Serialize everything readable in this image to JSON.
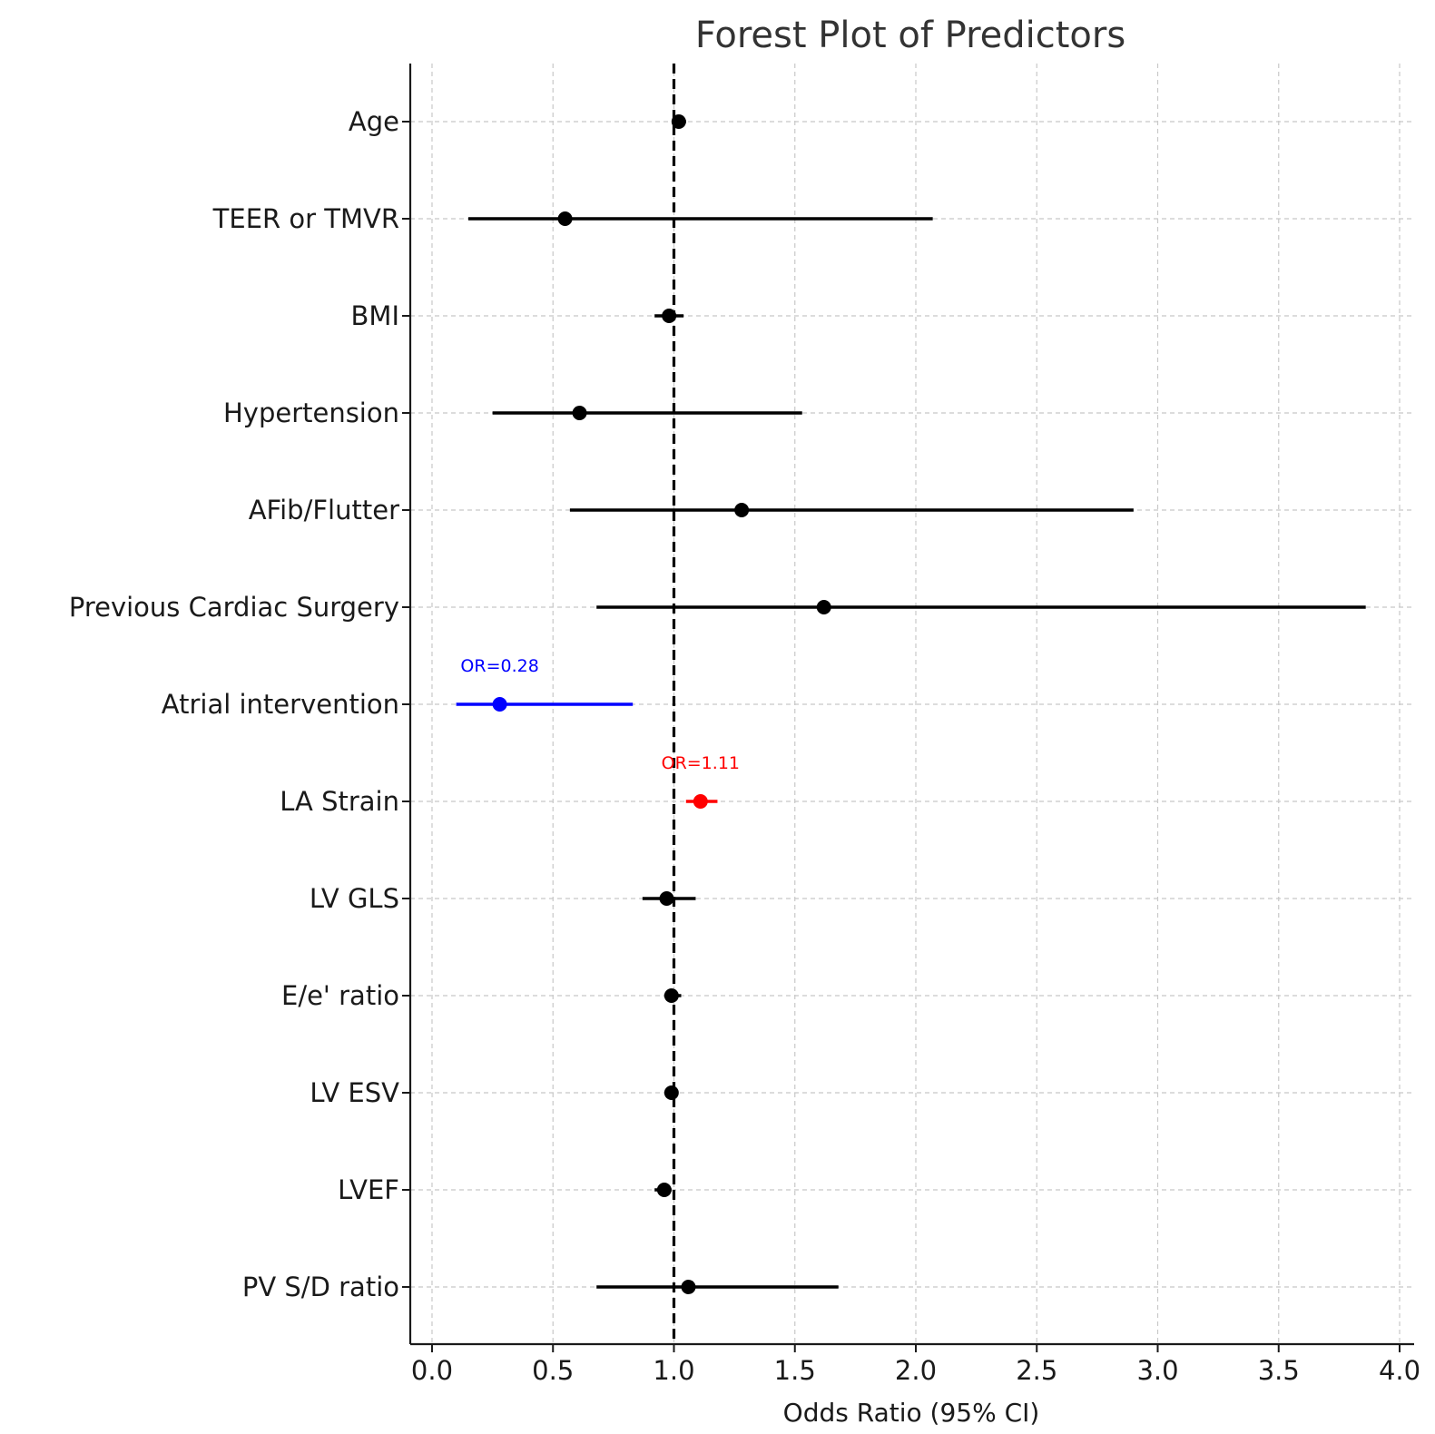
{
  "chart_data": {
    "type": "forest",
    "title": "Forest Plot of Predictors",
    "xlabel": "Odds Ratio (95% CI)",
    "ylabel": "",
    "xlim": [
      -0.09,
      4.06
    ],
    "xticks": [
      0.0,
      0.5,
      1.0,
      1.5,
      2.0,
      2.5,
      3.0,
      3.5,
      4.0
    ],
    "xtick_labels": [
      "0.0",
      "0.5",
      "1.0",
      "1.5",
      "2.0",
      "2.5",
      "3.0",
      "3.5",
      "4.0"
    ],
    "reference_line": 1.0,
    "grid": true,
    "predictors": [
      {
        "label": "Age",
        "or": 1.02,
        "lower": 1.0,
        "upper": 1.05,
        "color": "#000000"
      },
      {
        "label": "TEER or TMVR",
        "or": 0.55,
        "lower": 0.15,
        "upper": 2.07,
        "color": "#000000"
      },
      {
        "label": "BMI",
        "or": 0.98,
        "lower": 0.92,
        "upper": 1.04,
        "color": "#000000"
      },
      {
        "label": "Hypertension",
        "or": 0.61,
        "lower": 0.25,
        "upper": 1.53,
        "color": "#000000"
      },
      {
        "label": "AFib/Flutter",
        "or": 1.28,
        "lower": 0.57,
        "upper": 2.9,
        "color": "#000000"
      },
      {
        "label": "Previous Cardiac Surgery",
        "or": 1.62,
        "lower": 0.68,
        "upper": 3.86,
        "color": "#000000"
      },
      {
        "label": "Atrial intervention",
        "or": 0.28,
        "lower": 0.1,
        "upper": 0.83,
        "color": "#0000ff",
        "annotation": "OR=0.28"
      },
      {
        "label": "LA Strain",
        "or": 1.11,
        "lower": 1.05,
        "upper": 1.18,
        "color": "#ff0000",
        "annotation": "OR=1.11"
      },
      {
        "label": "LV GLS",
        "or": 0.97,
        "lower": 0.87,
        "upper": 1.09,
        "color": "#000000"
      },
      {
        "label": "E/e' ratio",
        "or": 0.99,
        "lower": 0.96,
        "upper": 1.03,
        "color": "#000000"
      },
      {
        "label": "LV ESV",
        "or": 0.99,
        "lower": 0.98,
        "upper": 1.0,
        "color": "#000000"
      },
      {
        "label": "LVEF",
        "or": 0.96,
        "lower": 0.92,
        "upper": 0.99,
        "color": "#000000"
      },
      {
        "label": "PV S/D ratio",
        "or": 1.06,
        "lower": 0.68,
        "upper": 1.68,
        "color": "#000000"
      }
    ]
  }
}
